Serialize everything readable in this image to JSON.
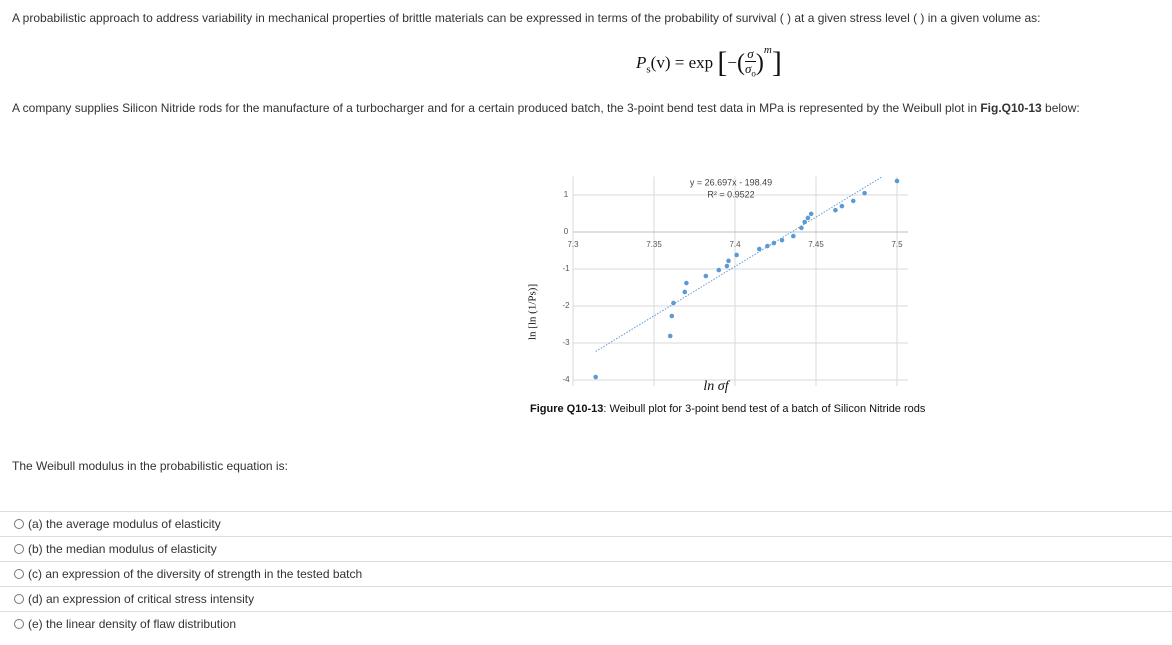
{
  "intro": "A probabilistic approach to address variability in mechanical properties of brittle materials can be expressed in terms of the probability of survival ( ) at a given stress level ( ) in a given volume as:",
  "equation": {
    "lhs": "P",
    "lhs_sub": "s",
    "lhs_rest": "(v) = exp",
    "minus": "−",
    "num": "σ",
    "den": "σ",
    "den_sub": "o",
    "exponent": "m"
  },
  "context": {
    "text": "A company supplies Silicon Nitride rods for the manufacture of a turbocharger and for a certain produced batch, the 3-point bend test data in MPa is represented by the Weibull plot in ",
    "ref": "Fig.Q10-13",
    "after": " below:"
  },
  "figure": {
    "type": "scatter",
    "x_label": "ln σf",
    "y_label": "ln [ln (1/Ps)]",
    "trend_label": "y = 26.697x - 198.49",
    "r2_label": "R² = 0.9522",
    "trend": {
      "slope": 26.697,
      "intercept": -198.49
    },
    "caption_ref": "Figure Q10-13",
    "caption_text": ": Weibull plot for 3-point bend test of a batch of Silicon Nitride rods",
    "color": "#5b9bd5",
    "x": [
      7.314,
      7.36,
      7.361,
      7.362,
      7.369,
      7.37,
      7.382,
      7.39,
      7.395,
      7.396,
      7.401,
      7.415,
      7.42,
      7.424,
      7.429,
      7.436,
      7.441,
      7.443,
      7.445,
      7.447,
      7.462,
      7.466,
      7.473,
      7.48,
      7.5
    ],
    "values": [
      -3.92,
      -2.81,
      -2.27,
      -1.92,
      -1.62,
      -1.38,
      -1.19,
      -1.03,
      -0.92,
      -0.78,
      -0.62,
      -0.46,
      -0.38,
      -0.3,
      -0.22,
      -0.11,
      0.11,
      0.27,
      0.38,
      0.49,
      0.59,
      0.7,
      0.84,
      1.05,
      1.38
    ],
    "xlim": [
      7.3,
      7.5
    ],
    "ylim": [
      -4,
      1.5
    ],
    "xticks": [
      7.3,
      7.35,
      7.4,
      7.45,
      7.5
    ],
    "yticks": [
      1,
      0,
      -1,
      -2,
      -3,
      -4
    ],
    "grid": true
  },
  "question": "The Weibull modulus  in the probabilistic equation is:",
  "options": [
    "(a) the average modulus of elasticity",
    "(b) the median modulus of elasticity",
    "(c)  an expression of the diversity of strength in the tested batch",
    "(d) an expression of critical stress intensity",
    "(e)  the linear density of flaw distribution"
  ]
}
